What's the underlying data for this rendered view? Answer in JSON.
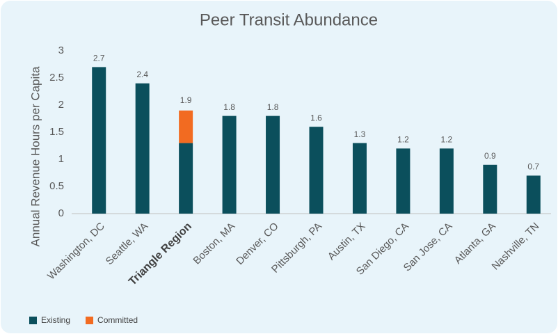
{
  "chart_data": {
    "type": "stacked_bar",
    "title": "Peer Transit Abundance",
    "y_label": "Annual Revenue Hours per Capita",
    "categories": [
      "Washington, DC",
      "Seattle, WA",
      "Triangle Region",
      "Boston, MA",
      "Denver, CO",
      "Pittsburgh, PA",
      "Austin, TX",
      "San Diego, CA",
      "San Jose, CA",
      "Atlanta, GA",
      "Nashville, TN"
    ],
    "highlight": "Triangle Region",
    "series": [
      {
        "name": "Existing",
        "color": "#0b4f5c",
        "values": [
          2.7,
          2.4,
          1.3,
          1.8,
          1.8,
          1.6,
          1.3,
          1.2,
          1.2,
          0.9,
          0.7
        ]
      },
      {
        "name": "Committed",
        "color": "#f26b21",
        "values": [
          null,
          null,
          0.6,
          null,
          null,
          null,
          null,
          null,
          null,
          null,
          null
        ]
      }
    ],
    "total_labels": [
      null,
      null,
      1.9,
      null,
      null,
      null,
      null,
      null,
      null,
      null,
      null
    ],
    "ylim": [
      0,
      3
    ],
    "yticks": [
      0,
      0.5,
      1,
      1.5,
      2,
      2.5,
      3
    ],
    "grid": false,
    "legend": "bottom-left"
  }
}
